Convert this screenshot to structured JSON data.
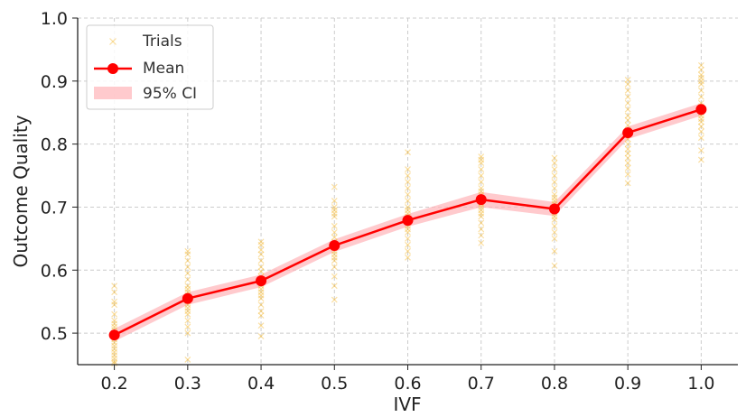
{
  "chart_data": {
    "type": "line",
    "title": "",
    "xlabel": "IVF",
    "ylabel": "Outcome Quality",
    "xlim": [
      0.15,
      1.05
    ],
    "ylim": [
      0.45,
      1.0
    ],
    "x_ticks": [
      "0.2",
      "0.3",
      "0.4",
      "0.5",
      "0.6",
      "0.7",
      "0.8",
      "0.9",
      "1.0"
    ],
    "y_ticks": [
      "0.5",
      "0.6",
      "0.7",
      "0.8",
      "0.9",
      "1.0"
    ],
    "grid": true,
    "legend_position": "top-left",
    "legend": [
      "Trials",
      "Mean",
      "95% CI"
    ],
    "colors": {
      "trials": "#f5b731",
      "mean": "#ff0000",
      "ci": "#ffb3b8"
    },
    "x": [
      0.2,
      0.3,
      0.4,
      0.5,
      0.6,
      0.7,
      0.8,
      0.9,
      1.0
    ],
    "series": [
      {
        "name": "Mean",
        "values": [
          0.497,
          0.555,
          0.583,
          0.639,
          0.679,
          0.712,
          0.697,
          0.818,
          0.855
        ]
      },
      {
        "name": "95% CI",
        "lower": [
          0.487,
          0.545,
          0.573,
          0.629,
          0.669,
          0.7,
          0.686,
          0.808,
          0.845
        ],
        "upper": [
          0.507,
          0.565,
          0.593,
          0.649,
          0.689,
          0.724,
          0.708,
          0.828,
          0.865
        ]
      }
    ],
    "trials": {
      "name": "Trials",
      "points": [
        {
          "x": 0.2,
          "ys": [
            0.575,
            0.565,
            0.55,
            0.545,
            0.53,
            0.52,
            0.515,
            0.51,
            0.505,
            0.5,
            0.495,
            0.49,
            0.485,
            0.48,
            0.475,
            0.47,
            0.465,
            0.46,
            0.455,
            0.452
          ]
        },
        {
          "x": 0.3,
          "ys": [
            0.63,
            0.625,
            0.615,
            0.605,
            0.595,
            0.585,
            0.575,
            0.57,
            0.565,
            0.56,
            0.555,
            0.55,
            0.545,
            0.54,
            0.535,
            0.53,
            0.52,
            0.51,
            0.5,
            0.458
          ]
        },
        {
          "x": 0.4,
          "ys": [
            0.645,
            0.64,
            0.632,
            0.625,
            0.615,
            0.605,
            0.598,
            0.59,
            0.585,
            0.58,
            0.575,
            0.57,
            0.565,
            0.56,
            0.555,
            0.545,
            0.535,
            0.528,
            0.512,
            0.495
          ]
        },
        {
          "x": 0.5,
          "ys": [
            0.732,
            0.71,
            0.7,
            0.695,
            0.69,
            0.685,
            0.67,
            0.66,
            0.652,
            0.645,
            0.64,
            0.635,
            0.63,
            0.625,
            0.62,
            0.615,
            0.605,
            0.59,
            0.575,
            0.553
          ]
        },
        {
          "x": 0.6,
          "ys": [
            0.787,
            0.76,
            0.75,
            0.74,
            0.73,
            0.72,
            0.71,
            0.7,
            0.695,
            0.69,
            0.685,
            0.68,
            0.675,
            0.67,
            0.665,
            0.66,
            0.65,
            0.64,
            0.63,
            0.62
          ]
        },
        {
          "x": 0.7,
          "ys": [
            0.78,
            0.775,
            0.77,
            0.76,
            0.75,
            0.74,
            0.73,
            0.725,
            0.72,
            0.715,
            0.71,
            0.705,
            0.7,
            0.695,
            0.69,
            0.685,
            0.675,
            0.665,
            0.655,
            0.643
          ]
        },
        {
          "x": 0.8,
          "ys": [
            0.778,
            0.77,
            0.76,
            0.75,
            0.74,
            0.73,
            0.72,
            0.715,
            0.71,
            0.705,
            0.7,
            0.695,
            0.69,
            0.685,
            0.68,
            0.67,
            0.66,
            0.65,
            0.63,
            0.607
          ]
        },
        {
          "x": 0.9,
          "ys": [
            0.902,
            0.895,
            0.885,
            0.875,
            0.865,
            0.855,
            0.845,
            0.838,
            0.83,
            0.822,
            0.815,
            0.808,
            0.8,
            0.792,
            0.785,
            0.778,
            0.77,
            0.762,
            0.752,
            0.738
          ]
        },
        {
          "x": 1.0,
          "ys": [
            0.925,
            0.918,
            0.91,
            0.905,
            0.9,
            0.895,
            0.885,
            0.875,
            0.865,
            0.86,
            0.855,
            0.85,
            0.845,
            0.84,
            0.835,
            0.828,
            0.82,
            0.81,
            0.79,
            0.775
          ]
        }
      ]
    }
  }
}
